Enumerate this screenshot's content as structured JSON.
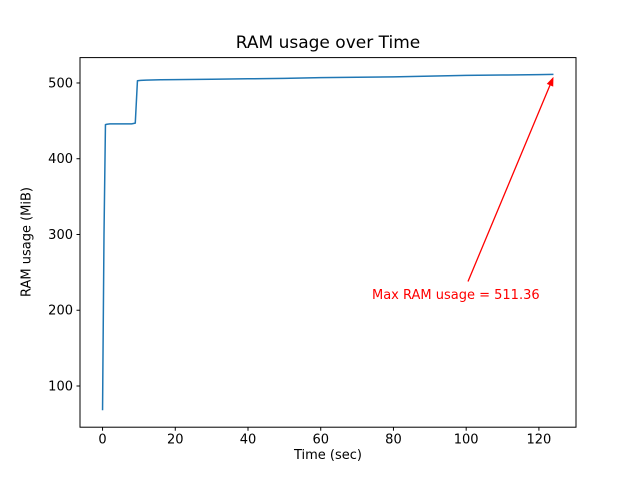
{
  "chart_data": {
    "type": "line",
    "title": "RAM usage over Time",
    "xlabel": "Time (sec)",
    "ylabel": "RAM usage (MiB)",
    "x": [
      0,
      0.4,
      0.8,
      1.2,
      2,
      4,
      6,
      8,
      9,
      9.6,
      10.5,
      12,
      16,
      20,
      30,
      40,
      50,
      60,
      70,
      80,
      90,
      100,
      110,
      120,
      124
    ],
    "y": [
      68,
      300,
      445,
      445.5,
      446,
      446,
      446,
      446,
      447,
      503,
      503.5,
      503.8,
      504.2,
      504.5,
      505,
      505.5,
      506,
      507,
      507.5,
      508,
      509,
      510,
      510.5,
      511,
      511.36
    ],
    "xlim": [
      -6.2,
      130.2
    ],
    "ylim": [
      45.6,
      533.5
    ],
    "xticks": [
      0,
      20,
      40,
      60,
      80,
      100,
      120
    ],
    "yticks": [
      100,
      200,
      300,
      400,
      500
    ],
    "line_color": "#1f77b4",
    "axis_color": "#000000",
    "annotation": {
      "text": "Max RAM usage = 511.36",
      "color": "#ff0000",
      "xy": [
        124,
        508
      ],
      "tail": [
        100.5,
        238
      ]
    }
  }
}
